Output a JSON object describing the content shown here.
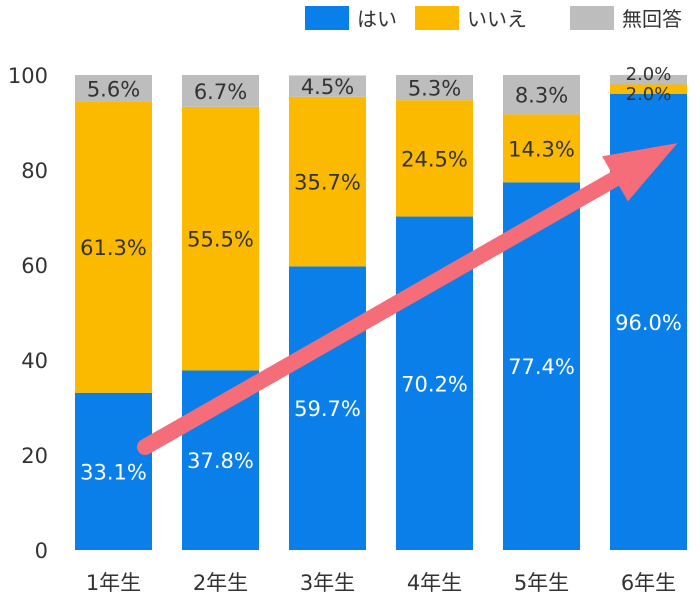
{
  "chart_data": {
    "type": "bar",
    "stacked": true,
    "categories": [
      "1年生",
      "2年生",
      "3年生",
      "4年生",
      "5年生",
      "6年生"
    ],
    "series": [
      {
        "name": "はい",
        "color": "#0a7fe9",
        "values": [
          33.1,
          37.8,
          59.7,
          70.2,
          77.4,
          96.0
        ],
        "labels": [
          "33.1%",
          "37.8%",
          "59.7%",
          "70.2%",
          "77.4%",
          "96.0%"
        ]
      },
      {
        "name": "いいえ",
        "color": "#fbb900",
        "values": [
          61.3,
          55.5,
          35.7,
          24.5,
          14.3,
          2.0
        ],
        "labels": [
          "61.3%",
          "55.5%",
          "35.7%",
          "24.5%",
          "14.3%",
          "2.0%"
        ]
      },
      {
        "name": "無回答",
        "color": "#bdbdbd",
        "values": [
          5.6,
          6.7,
          4.5,
          5.3,
          8.3,
          2.0
        ],
        "labels": [
          "5.6%",
          "6.7%",
          "4.5%",
          "5.3%",
          "8.3%",
          "2.0%"
        ]
      }
    ],
    "yticks": [
      "0",
      "20",
      "40",
      "60",
      "80",
      "100"
    ],
    "ylim": [
      0,
      100
    ],
    "legend_position": "top-right",
    "arrow_color": "#f56d78",
    "title": "",
    "xlabel": "",
    "ylabel": ""
  }
}
